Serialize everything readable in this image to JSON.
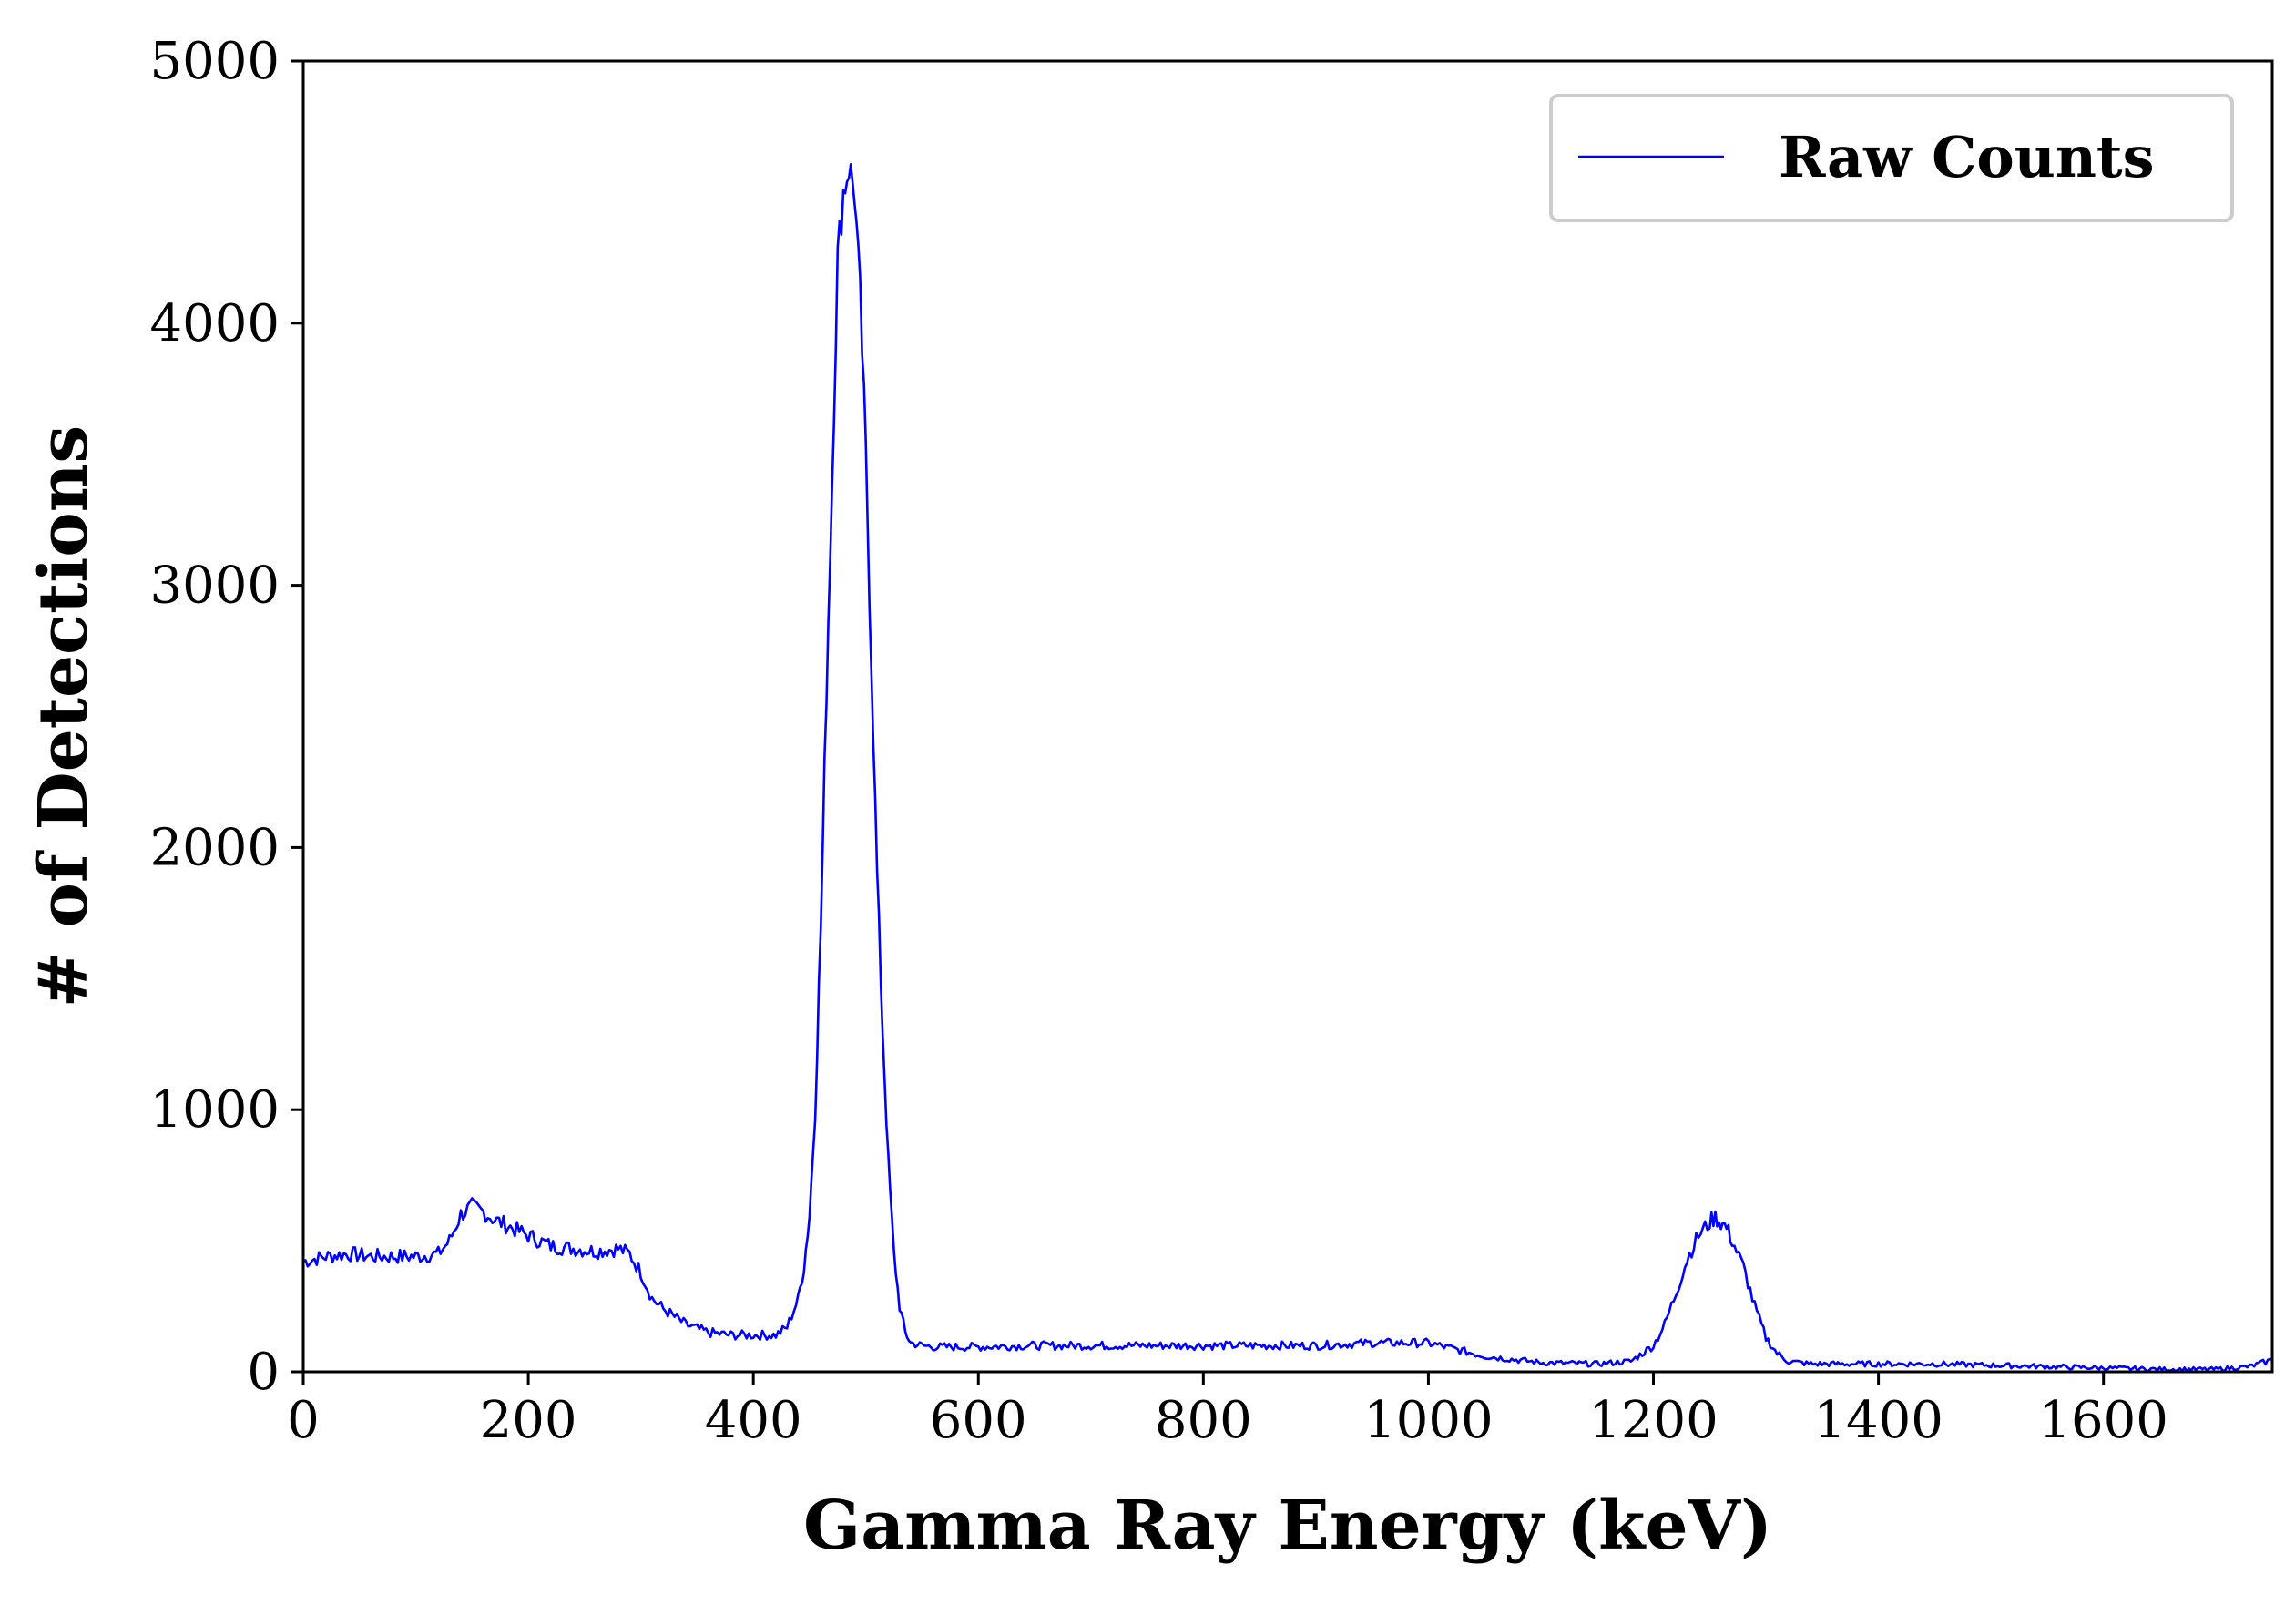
{
  "chart_data": {
    "type": "line",
    "title": "",
    "xlabel": "Gamma Ray Energy (keV)",
    "ylabel": "# of Detections",
    "xlim": [
      0,
      1750
    ],
    "ylim": [
      0,
      5000
    ],
    "grid": false,
    "legend_position": "top-right",
    "x_ticks": [
      0,
      200,
      400,
      600,
      800,
      1000,
      1200,
      1400,
      1600
    ],
    "x_tick_labels": [
      "0",
      "200",
      "400",
      "600",
      "800",
      "1000",
      "1200",
      "1400",
      "1600"
    ],
    "y_ticks": [
      0,
      1000,
      2000,
      3000,
      4000,
      5000
    ],
    "y_tick_labels": [
      "0",
      "1000",
      "2000",
      "3000",
      "4000",
      "5000"
    ],
    "series": [
      {
        "name": "Raw Counts",
        "color": "#0000ff",
        "x": [
          0,
          20,
          40,
          60,
          80,
          100,
          120,
          130,
          140,
          150,
          160,
          170,
          180,
          200,
          220,
          240,
          260,
          280,
          290,
          300,
          310,
          320,
          340,
          360,
          380,
          400,
          420,
          430,
          440,
          445,
          450,
          455,
          460,
          465,
          470,
          475,
          480,
          485,
          490,
          495,
          500,
          505,
          510,
          515,
          520,
          525,
          530,
          535,
          540,
          550,
          560,
          580,
          600,
          650,
          700,
          750,
          800,
          850,
          900,
          950,
          1000,
          1020,
          1050,
          1100,
          1150,
          1180,
          1200,
          1210,
          1220,
          1230,
          1240,
          1250,
          1255,
          1260,
          1265,
          1270,
          1280,
          1290,
          1300,
          1310,
          1320,
          1340,
          1400,
          1450,
          1500,
          1550,
          1600,
          1650,
          1700,
          1730,
          1750
        ],
        "y": [
          420,
          440,
          450,
          440,
          440,
          440,
          450,
          500,
          600,
          630,
          610,
          580,
          560,
          520,
          480,
          470,
          460,
          470,
          450,
          380,
          280,
          240,
          180,
          150,
          140,
          140,
          140,
          170,
          280,
          400,
          600,
          1000,
          1700,
          2600,
          3400,
          4250,
          4500,
          4600,
          4500,
          4100,
          3500,
          2700,
          1900,
          1300,
          800,
          450,
          250,
          150,
          110,
          100,
          95,
          95,
          95,
          100,
          100,
          100,
          100,
          100,
          100,
          110,
          110,
          90,
          60,
          35,
          30,
          40,
          100,
          180,
          300,
          430,
          520,
          570,
          590,
          570,
          550,
          500,
          400,
          250,
          130,
          70,
          40,
          30,
          30,
          30,
          25,
          20,
          15,
          10,
          10,
          20,
          45
        ]
      }
    ]
  }
}
